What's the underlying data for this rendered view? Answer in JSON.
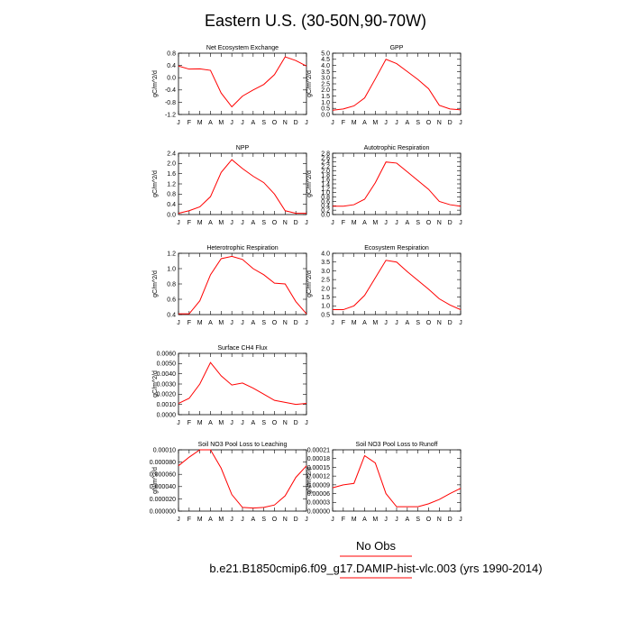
{
  "figure": {
    "title": "Eastern U.S. (30-50N,90-70W)",
    "legend": {
      "obs_label": "No Obs",
      "case_label": "b.e21.B1850cmip6.f09_g17.DAMIP-hist-vlc.003 (yrs 1990-2014)",
      "line_color": "#ff0000"
    },
    "month_ticks": [
      "J",
      "F",
      "M",
      "A",
      "M",
      "J",
      "J",
      "A",
      "S",
      "O",
      "N",
      "D",
      "J"
    ]
  },
  "chart_data": [
    {
      "type": "line",
      "title": "Net Ecosystem Exchange",
      "ylabel": "gC/m^2/d",
      "ylim": [
        -1.2,
        0.8
      ],
      "yticks": [
        "0.8",
        "0.4",
        "0.0",
        "-0.4",
        "-0.8",
        "-1.2"
      ],
      "yticks_values": [
        0.8,
        0.4,
        0.0,
        -0.4,
        -0.8,
        -1.2
      ],
      "x": [
        "J",
        "F",
        "M",
        "A",
        "M",
        "J",
        "J",
        "A",
        "S",
        "O",
        "N",
        "D",
        "J"
      ],
      "series": [
        {
          "color": "#ff0000",
          "values": [
            0.38,
            0.28,
            0.29,
            0.24,
            -0.5,
            -0.95,
            -0.6,
            -0.4,
            -0.22,
            0.1,
            0.68,
            0.56,
            0.38
          ]
        }
      ]
    },
    {
      "type": "line",
      "title": "GPP",
      "ylabel": "gC/m^2/d",
      "ylim": [
        0.0,
        5.0
      ],
      "yticks": [
        "5.0",
        "4.5",
        "4.0",
        "3.5",
        "3.0",
        "2.5",
        "2.0",
        "1.5",
        "1.0",
        "0.5",
        "0.0"
      ],
      "yticks_values": [
        5.0,
        4.5,
        4.0,
        3.5,
        3.0,
        2.5,
        2.0,
        1.5,
        1.0,
        0.5,
        0.0
      ],
      "x": [
        "J",
        "F",
        "M",
        "A",
        "M",
        "J",
        "J",
        "A",
        "S",
        "O",
        "N",
        "D",
        "J"
      ],
      "series": [
        {
          "color": "#ff0000",
          "values": [
            0.35,
            0.45,
            0.7,
            1.35,
            2.9,
            4.5,
            4.15,
            3.5,
            2.85,
            2.1,
            0.75,
            0.45,
            0.38
          ]
        }
      ]
    },
    {
      "type": "line",
      "title": "NPP",
      "ylabel": "gC/m^2/d",
      "ylim": [
        0.0,
        2.4
      ],
      "yticks": [
        "2.4",
        "2.0",
        "1.6",
        "1.2",
        "0.8",
        "0.4",
        "0.0"
      ],
      "yticks_values": [
        2.4,
        2.0,
        1.6,
        1.2,
        0.8,
        0.4,
        0.0
      ],
      "x": [
        "J",
        "F",
        "M",
        "A",
        "M",
        "J",
        "J",
        "A",
        "S",
        "O",
        "N",
        "D",
        "J"
      ],
      "series": [
        {
          "color": "#ff0000",
          "values": [
            0.05,
            0.15,
            0.3,
            0.7,
            1.65,
            2.15,
            1.8,
            1.5,
            1.25,
            0.8,
            0.15,
            0.05,
            0.05
          ]
        }
      ]
    },
    {
      "type": "line",
      "title": "Autotrophic Respiration",
      "ylabel": "gC/m^2/d",
      "ylim": [
        0.0,
        2.8
      ],
      "yticks": [
        "2.8",
        "2.6",
        "2.4",
        "2.2",
        "2.0",
        "1.8",
        "1.6",
        "1.4",
        "1.2",
        "1.0",
        "0.8",
        "0.6",
        "0.4",
        "0.2",
        "0.0"
      ],
      "yticks_values": [
        2.8,
        2.6,
        2.4,
        2.2,
        2.0,
        1.8,
        1.6,
        1.4,
        1.2,
        1.0,
        0.8,
        0.6,
        0.4,
        0.2,
        0.0
      ],
      "x": [
        "J",
        "F",
        "M",
        "A",
        "M",
        "J",
        "J",
        "A",
        "S",
        "O",
        "N",
        "D",
        "J"
      ],
      "series": [
        {
          "color": "#ff0000",
          "values": [
            0.38,
            0.38,
            0.45,
            0.7,
            1.45,
            2.4,
            2.35,
            1.95,
            1.55,
            1.15,
            0.6,
            0.45,
            0.38
          ]
        }
      ]
    },
    {
      "type": "line",
      "title": "Heterotrophic Respiration",
      "ylabel": "gC/m^2/d",
      "ylim": [
        0.4,
        1.2
      ],
      "yticks": [
        "1.2",
        "1.0",
        "0.8",
        "0.6",
        "0.4"
      ],
      "yticks_values": [
        1.2,
        1.0,
        0.8,
        0.6,
        0.4
      ],
      "x": [
        "J",
        "F",
        "M",
        "A",
        "M",
        "J",
        "J",
        "A",
        "S",
        "O",
        "N",
        "D",
        "J"
      ],
      "series": [
        {
          "color": "#ff0000",
          "values": [
            0.41,
            0.41,
            0.58,
            0.92,
            1.13,
            1.16,
            1.12,
            1.0,
            0.92,
            0.81,
            0.8,
            0.57,
            0.41
          ]
        }
      ]
    },
    {
      "type": "line",
      "title": "Ecosystem Respiration",
      "ylabel": "gC/m^2/d",
      "ylim": [
        0.5,
        4.0
      ],
      "yticks": [
        "4.0",
        "3.5",
        "3.0",
        "2.5",
        "2.0",
        "1.5",
        "1.0",
        "0.5"
      ],
      "yticks_values": [
        4.0,
        3.5,
        3.0,
        2.5,
        2.0,
        1.5,
        1.0,
        0.5
      ],
      "x": [
        "J",
        "F",
        "M",
        "A",
        "M",
        "J",
        "J",
        "A",
        "S",
        "O",
        "N",
        "D",
        "J"
      ],
      "series": [
        {
          "color": "#ff0000",
          "values": [
            0.78,
            0.78,
            1.0,
            1.6,
            2.6,
            3.6,
            3.5,
            2.95,
            2.45,
            1.95,
            1.4,
            1.05,
            0.78
          ]
        }
      ]
    },
    {
      "type": "line",
      "title": "Surface CH4 Flux",
      "ylabel": "gC/m^2/d",
      "ylim": [
        0.0,
        0.006
      ],
      "yticks": [
        "0.0060",
        "0.0050",
        "0.0040",
        "0.0030",
        "0.0020",
        "0.0010",
        "0.0000"
      ],
      "yticks_values": [
        0.006,
        0.005,
        0.004,
        0.003,
        0.002,
        0.001,
        0.0
      ],
      "x": [
        "J",
        "F",
        "M",
        "A",
        "M",
        "J",
        "J",
        "A",
        "S",
        "O",
        "N",
        "D",
        "J"
      ],
      "series": [
        {
          "color": "#ff0000",
          "values": [
            0.0011,
            0.0016,
            0.003,
            0.0051,
            0.0038,
            0.0029,
            0.0031,
            0.0026,
            0.002,
            0.0014,
            0.0012,
            0.001,
            0.0011
          ]
        }
      ]
    },
    {
      "type": "line",
      "title": "Soil NO3 Pool Loss to Leaching",
      "ylabel": "gN/m^2/d",
      "ylim": [
        0.0,
        0.0001
      ],
      "yticks": [
        "0.00010",
        "0.000080",
        "0.000060",
        "0.000040",
        "0.000020",
        "0.000000"
      ],
      "yticks_values": [
        0.0001,
        8e-05,
        6e-05,
        4e-05,
        2e-05,
        0.0
      ],
      "x": [
        "J",
        "F",
        "M",
        "A",
        "M",
        "J",
        "J",
        "A",
        "S",
        "O",
        "N",
        "D",
        "J"
      ],
      "series": [
        {
          "color": "#ff0000",
          "values": [
            7.4e-05,
            8.8e-05,
            0.0001,
            0.0001,
            7e-05,
            2.7e-05,
            6e-06,
            5e-06,
            6e-06,
            1e-05,
            2.5e-05,
            5.5e-05,
            7.4e-05
          ]
        }
      ]
    },
    {
      "type": "line",
      "title": "Soil NO3 Pool Loss to Runoff",
      "ylabel": "gN/m^2/d",
      "ylim": [
        0.0,
        0.00021
      ],
      "yticks": [
        "0.00021",
        "0.00018",
        "0.00015",
        "0.00012",
        "0.00009",
        "0.00006",
        "0.00003",
        "0.00000"
      ],
      "yticks_values": [
        0.00021,
        0.00018,
        0.00015,
        0.00012,
        9e-05,
        6e-05,
        3e-05,
        0.0
      ],
      "x": [
        "J",
        "F",
        "M",
        "A",
        "M",
        "J",
        "J",
        "A",
        "S",
        "O",
        "N",
        "D",
        "J"
      ],
      "series": [
        {
          "color": "#ff0000",
          "values": [
            8e-05,
            9e-05,
            9.5e-05,
            0.00019,
            0.000165,
            6e-05,
            1.5e-05,
            1.5e-05,
            1.5e-05,
            2.5e-05,
            4e-05,
            6e-05,
            7.8e-05
          ]
        }
      ]
    }
  ]
}
